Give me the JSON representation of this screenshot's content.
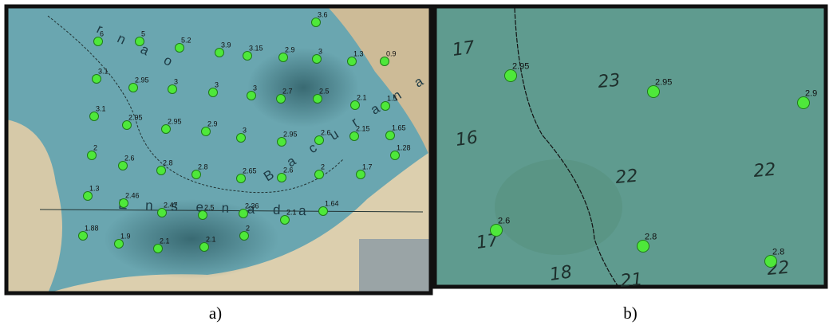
{
  "panels": [
    {
      "caption": "a)",
      "map_labels": [
        "r n a o",
        "E n s e n a d a",
        "B a c u r a n a"
      ],
      "points": [
        "6",
        "5",
        "5.2",
        "3.9",
        "3.15",
        "2.9",
        "3",
        "1.3",
        "0.9",
        "3.6",
        "3.1",
        "2.95",
        "3",
        "3",
        "3",
        "2.7",
        "2.5",
        "2.1",
        "1.5",
        "3.1",
        "2.95",
        "2.95",
        "2.9",
        "3",
        "2.95",
        "2.6",
        "2.15",
        "1.65",
        "2",
        "2.6",
        "2.8",
        "2.8",
        "2.65",
        "2.6",
        "2",
        "1.7",
        "1.28",
        "1.3",
        "2.46",
        "2.47",
        "2.5",
        "2.36",
        "2.1",
        "1.64",
        "1.88",
        "1.9",
        "2.1",
        "2.1",
        "2"
      ]
    },
    {
      "caption": "b)",
      "depth_soundings": [
        "17",
        "23",
        "16",
        "22",
        "22",
        "17",
        "21",
        "18",
        "22"
      ],
      "points": [
        "2.95",
        "2.95",
        "2.9",
        "2.6",
        "2.8",
        "2.8"
      ]
    }
  ]
}
